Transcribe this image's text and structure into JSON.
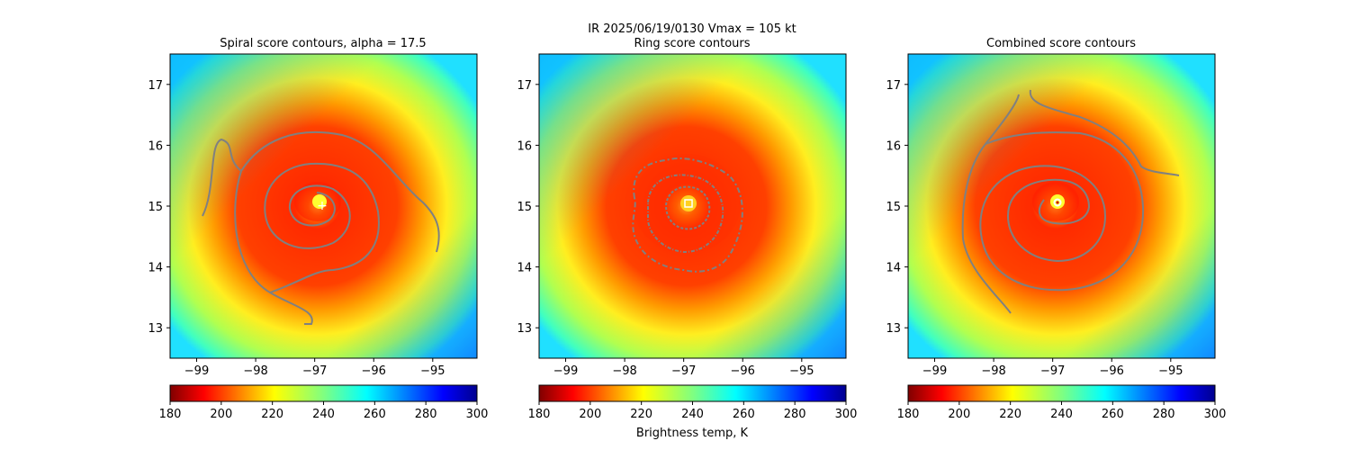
{
  "figure": {
    "suptitle_line1": "IR  2025/06/19/0130    Vmax = 105 kt",
    "colorbar_label": "Brightness temp, K"
  },
  "chart_data": [
    {
      "type": "heatmap",
      "title": "Spiral score contours, alpha = 17.5",
      "x_ticks": [
        -99,
        -98,
        -97,
        -96,
        -95
      ],
      "x_tick_labels": [
        "−99",
        "−98",
        "−97",
        "−96",
        "−95"
      ],
      "y_ticks": [
        13,
        14,
        15,
        16,
        17
      ],
      "y_tick_labels": [
        "13",
        "14",
        "15",
        "16",
        "17"
      ],
      "xlim": [
        -99.45,
        -94.25
      ],
      "ylim": [
        12.5,
        17.5
      ],
      "colorbar": {
        "ticks": [
          180,
          200,
          220,
          240,
          260,
          280,
          300
        ],
        "range": [
          180,
          300
        ],
        "colormap": "jet_r"
      },
      "center_marker": {
        "shape": "plus",
        "lon": -96.95,
        "lat": 14.97,
        "color": "#ffffff"
      },
      "contour_color": "#808080"
    },
    {
      "type": "heatmap",
      "title": "Ring score contours",
      "x_ticks": [
        -99,
        -98,
        -97,
        -96,
        -95
      ],
      "x_tick_labels": [
        "−99",
        "−98",
        "−97",
        "−96",
        "−95"
      ],
      "y_ticks": [
        13,
        14,
        15,
        16,
        17
      ],
      "y_tick_labels": [
        "13",
        "14",
        "15",
        "16",
        "17"
      ],
      "xlim": [
        -99.45,
        -94.25
      ],
      "ylim": [
        12.5,
        17.5
      ],
      "colorbar": {
        "ticks": [
          180,
          200,
          220,
          240,
          260,
          280,
          300
        ],
        "range": [
          180,
          300
        ],
        "colormap": "jet_r"
      },
      "center_marker": {
        "shape": "square",
        "lon": -97.0,
        "lat": 15.02,
        "color": "#ffffff"
      },
      "contour_color": "#808080"
    },
    {
      "type": "heatmap",
      "title": "Combined score contours",
      "x_ticks": [
        -99,
        -98,
        -97,
        -96,
        -95
      ],
      "x_tick_labels": [
        "−99",
        "−98",
        "−97",
        "−96",
        "−95"
      ],
      "y_ticks": [
        13,
        14,
        15,
        16,
        17
      ],
      "y_tick_labels": [
        "13",
        "14",
        "15",
        "16",
        "17"
      ],
      "xlim": [
        -99.45,
        -94.25
      ],
      "ylim": [
        12.5,
        17.5
      ],
      "colorbar": {
        "ticks": [
          180,
          200,
          220,
          240,
          260,
          280,
          300
        ],
        "range": [
          180,
          300
        ],
        "colormap": "jet_r"
      },
      "center_marker": {
        "shape": "circle",
        "lon": -96.97,
        "lat": 15.02,
        "color": "#ffffff",
        "edge": "#cc0000"
      },
      "contour_color": "#808080"
    }
  ]
}
